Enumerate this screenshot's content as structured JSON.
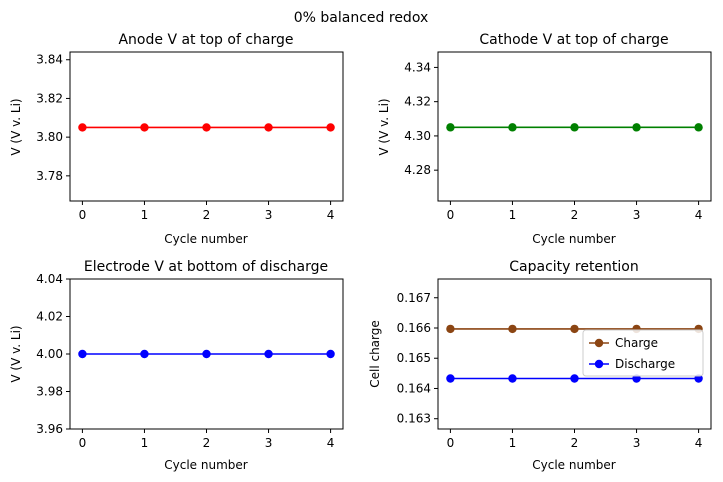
{
  "figure": {
    "suptitle": "0% balanced redox"
  },
  "chart_data": [
    {
      "type": "line",
      "title": "Anode V at top of charge",
      "xlabel": "Cycle number",
      "ylabel": "V (V v. Li)",
      "x": [
        0,
        1,
        2,
        3,
        4
      ],
      "xticks": [
        "0",
        "1",
        "2",
        "3",
        "4"
      ],
      "xlim": [
        -0.2,
        4.2
      ],
      "ylim": [
        3.767,
        3.844
      ],
      "yticks": [
        "3.78",
        "3.80",
        "3.82",
        "3.84"
      ],
      "ytick_values": [
        3.78,
        3.8,
        3.82,
        3.84
      ],
      "series": [
        {
          "values": [
            3.805,
            3.805,
            3.805,
            3.805,
            3.805
          ],
          "color": "#ff0000"
        }
      ],
      "grid": false
    },
    {
      "type": "line",
      "title": "Cathode V at top of charge",
      "xlabel": "Cycle number",
      "ylabel": "V (V v. Li)",
      "x": [
        0,
        1,
        2,
        3,
        4
      ],
      "xticks": [
        "0",
        "1",
        "2",
        "3",
        "4"
      ],
      "xlim": [
        -0.2,
        4.2
      ],
      "ylim": [
        4.262,
        4.349
      ],
      "yticks": [
        "4.28",
        "4.30",
        "4.32",
        "4.34"
      ],
      "ytick_values": [
        4.28,
        4.3,
        4.32,
        4.34
      ],
      "series": [
        {
          "values": [
            4.305,
            4.305,
            4.305,
            4.305,
            4.305
          ],
          "color": "#008000"
        }
      ],
      "grid": false
    },
    {
      "type": "line",
      "title": "Electrode V at bottom of discharge",
      "xlabel": "Cycle number",
      "ylabel": "V (V v. Li)",
      "x": [
        0,
        1,
        2,
        3,
        4
      ],
      "xticks": [
        "0",
        "1",
        "2",
        "3",
        "4"
      ],
      "xlim": [
        -0.2,
        4.2
      ],
      "ylim": [
        3.96,
        4.04
      ],
      "yticks": [
        "3.96",
        "3.98",
        "4.00",
        "4.02",
        "4.04"
      ],
      "ytick_values": [
        3.96,
        3.98,
        4.0,
        4.02,
        4.04
      ],
      "series": [
        {
          "values": [
            4.0,
            4.0,
            4.0,
            4.0,
            4.0
          ],
          "color": "#0000ff"
        }
      ],
      "grid": false
    },
    {
      "type": "line",
      "title": "Capacity retention",
      "xlabel": "Cycle number",
      "ylabel": "Cell charge",
      "x": [
        0,
        1,
        2,
        3,
        4
      ],
      "xticks": [
        "0",
        "1",
        "2",
        "3",
        "4"
      ],
      "xlim": [
        -0.2,
        4.2
      ],
      "ylim": [
        0.16266,
        0.16762
      ],
      "yticks": [
        "0.163",
        "0.164",
        "0.165",
        "0.166",
        "0.167"
      ],
      "ytick_values": [
        0.163,
        0.164,
        0.165,
        0.166,
        0.167
      ],
      "series": [
        {
          "name": "Charge",
          "values": [
            0.16597,
            0.16597,
            0.16597,
            0.16597,
            0.16597
          ],
          "color": "#8b4513"
        },
        {
          "name": "Discharge",
          "values": [
            0.16433,
            0.16433,
            0.16433,
            0.16433,
            0.16433
          ],
          "color": "#0000ff"
        }
      ],
      "legend": "right",
      "grid": false
    }
  ]
}
